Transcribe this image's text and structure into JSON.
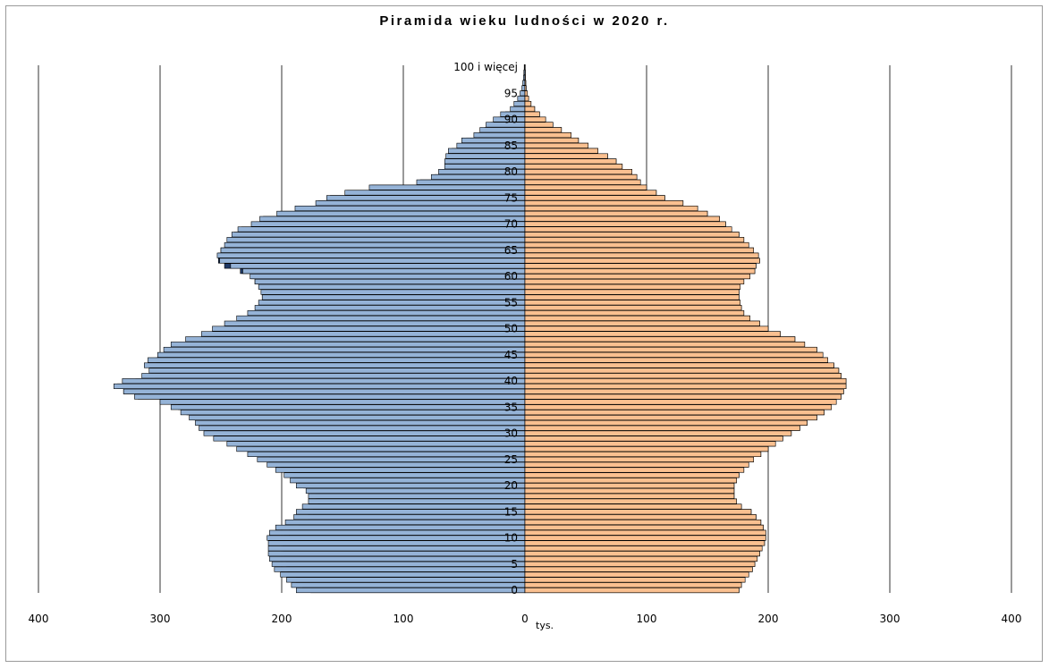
{
  "chart_data": {
    "type": "bar",
    "orientation": "horizontal",
    "title": "Piramida wieku ludności w 2020 r.",
    "xlabel": "tys.",
    "xlim": [
      -400,
      400
    ],
    "x_tick_labels": [
      "400",
      "300",
      "200",
      "100",
      "0",
      "100",
      "200",
      "300",
      "400"
    ],
    "grid": "vertical",
    "categories": [
      "0",
      "1",
      "2",
      "3",
      "4",
      "5",
      "6",
      "7",
      "8",
      "9",
      "10",
      "11",
      "12",
      "13",
      "14",
      "15",
      "16",
      "17",
      "18",
      "19",
      "20",
      "21",
      "22",
      "23",
      "24",
      "25",
      "26",
      "27",
      "28",
      "29",
      "30",
      "31",
      "32",
      "33",
      "34",
      "35",
      "36",
      "37",
      "38",
      "39",
      "40",
      "41",
      "42",
      "43",
      "44",
      "45",
      "46",
      "47",
      "48",
      "49",
      "50",
      "51",
      "52",
      "53",
      "54",
      "55",
      "56",
      "57",
      "58",
      "59",
      "60",
      "61",
      "62",
      "63",
      "64",
      "65",
      "66",
      "67",
      "68",
      "69",
      "70",
      "71",
      "72",
      "73",
      "74",
      "75",
      "76",
      "77",
      "78",
      "79",
      "80",
      "81",
      "82",
      "83",
      "84",
      "85",
      "86",
      "87",
      "88",
      "89",
      "90",
      "91",
      "92",
      "93",
      "94",
      "95",
      "96",
      "97",
      "98",
      "99",
      "100 i więcej"
    ],
    "y_tick_labels": [
      "0",
      "5",
      "10",
      "15",
      "20",
      "25",
      "30",
      "35",
      "40",
      "45",
      "50",
      "55",
      "60",
      "65",
      "70",
      "75",
      "80",
      "85",
      "90",
      "95",
      "100 i więcej"
    ],
    "series": [
      {
        "values": [
          176,
          183,
          188,
          193,
          195,
          196,
          197,
          198,
          199,
          199,
          198,
          194,
          186,
          182,
          178,
          174,
          170,
          170,
          172,
          176,
          182,
          186,
          190,
          194,
          201,
          210,
          216,
          224,
          234,
          243,
          255,
          262,
          266,
          272,
          278,
          285,
          298,
          318,
          330,
          335,
          320,
          304,
          307,
          309,
          303,
          296,
          291,
          275,
          264,
          255,
          246,
          236,
          227,
          223,
          218,
          215,
          216,
          216,
          218,
          222,
          225,
          234,
          247,
          252,
          252,
          250,
          244,
          242,
          239,
          233,
          221,
          215,
          201,
          187,
          170,
          160,
          146,
          126,
          86,
          74,
          68,
          62,
          62,
          62,
          60,
          52,
          48,
          38,
          33,
          28,
          22,
          16,
          9,
          7,
          4,
          3,
          1.5,
          1,
          0.8,
          0.5,
          0.4
        ]
      },
      {
        "values": [
          188,
          192,
          196,
          201,
          206,
          208,
          210,
          211,
          211,
          211,
          212,
          210,
          205,
          197,
          190,
          188,
          183,
          178,
          178,
          180,
          188,
          193,
          198,
          205,
          212,
          220,
          228,
          237,
          245,
          256,
          264,
          268,
          271,
          276,
          283,
          291,
          300,
          321,
          330,
          338,
          331,
          315,
          309,
          313,
          310,
          302,
          297,
          291,
          279,
          266,
          257,
          247,
          237,
          228,
          222,
          219,
          216,
          217,
          219,
          222,
          226,
          232,
          242,
          251,
          253,
          250,
          247,
          245,
          241,
          236,
          225,
          218,
          204,
          189,
          172,
          163,
          148,
          128,
          89,
          77,
          71,
          66,
          66,
          65,
          63,
          56,
          52,
          42,
          37,
          32,
          26,
          20,
          12,
          9,
          6,
          4,
          2.5,
          1.8,
          1.2,
          0.9,
          0.6
        ]
      },
      {
        "values": [
          176,
          178,
          181,
          184,
          187,
          189,
          191,
          193,
          195,
          197,
          198,
          198,
          196,
          194,
          190,
          186,
          178,
          174,
          172,
          172,
          172,
          174,
          176,
          180,
          184,
          188,
          194,
          200,
          206,
          212,
          219,
          226,
          232,
          240,
          246,
          252,
          256,
          260,
          262,
          264,
          264,
          260,
          258,
          254,
          249,
          245,
          240,
          230,
          222,
          210,
          200,
          193,
          185,
          180,
          178,
          177,
          176,
          176,
          177,
          180,
          185,
          189,
          190,
          193,
          192,
          188,
          184,
          180,
          176,
          170,
          165,
          160,
          150,
          142,
          130,
          115,
          108,
          100,
          95,
          92,
          88,
          80,
          75,
          68,
          60,
          52,
          44,
          38,
          30,
          23,
          17,
          12,
          8,
          5,
          3,
          2,
          1,
          0.7,
          0.5,
          0.3,
          0.2
        ]
      },
      {
        "values": [
          176,
          178,
          181,
          184,
          187,
          189,
          191,
          193,
          195,
          197,
          198,
          198,
          196,
          194,
          190,
          186,
          178,
          174,
          172,
          172,
          172,
          174,
          176,
          180,
          184,
          188,
          194,
          200,
          206,
          212,
          219,
          226,
          232,
          240,
          246,
          252,
          256,
          260,
          262,
          264,
          264,
          260,
          258,
          254,
          249,
          245,
          240,
          230,
          222,
          210,
          200,
          193,
          185,
          180,
          178,
          177,
          176,
          176,
          177,
          180,
          185,
          189,
          190,
          193,
          192,
          188,
          184,
          180,
          176,
          170,
          165,
          160,
          150,
          142,
          130,
          115,
          108,
          100,
          95,
          92,
          88,
          80,
          75,
          68,
          60,
          52,
          44,
          38,
          30,
          23,
          17,
          12,
          8,
          5,
          3,
          2,
          1,
          0.7,
          0.5,
          0.3,
          0.2
        ]
      }
    ],
    "colors": {
      "men_fill": "#95b3d7",
      "men_overflow": "#1f3864",
      "women_fill": "#fac090",
      "women_overflow": "#e36c09",
      "bar_edge": "#000000",
      "grid": "#000000",
      "frame": "#9a9a9a"
    }
  }
}
